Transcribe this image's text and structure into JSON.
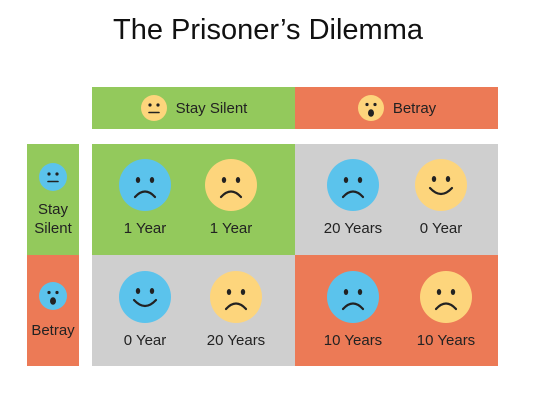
{
  "title": "The Prisoner’s Dilemma",
  "columns": [
    {
      "label": "Stay Silent",
      "icon": "neutral-face-icon"
    },
    {
      "label": "Betray",
      "icon": "surprised-face-icon"
    }
  ],
  "rows": [
    {
      "label": "Stay Silent",
      "icon": "neutral-face-icon"
    },
    {
      "label": "Betray",
      "icon": "surprised-face-icon"
    }
  ],
  "cells": [
    [
      {
        "left": {
          "label": "1 Year",
          "face": "sad",
          "color": "blue"
        },
        "right": {
          "label": "1 Year",
          "face": "sad",
          "color": "yellow"
        }
      },
      {
        "left": {
          "label": "20 Years",
          "face": "sad",
          "color": "blue"
        },
        "right": {
          "label": "0 Year",
          "face": "happy",
          "color": "yellow"
        }
      }
    ],
    [
      {
        "left": {
          "label": "0 Year",
          "face": "happy",
          "color": "blue"
        },
        "right": {
          "label": "20 Years",
          "face": "sad",
          "color": "yellow"
        }
      },
      {
        "left": {
          "label": "10 Years",
          "face": "sad",
          "color": "blue"
        },
        "right": {
          "label": "10 Years",
          "face": "sad",
          "color": "yellow"
        }
      }
    ]
  ],
  "colors": {
    "green": "#93c95c",
    "orange": "#ec7a56",
    "gray": "#cfcfcf",
    "blue_face": "#5bc3ec",
    "yellow_face": "#fdd57c"
  }
}
